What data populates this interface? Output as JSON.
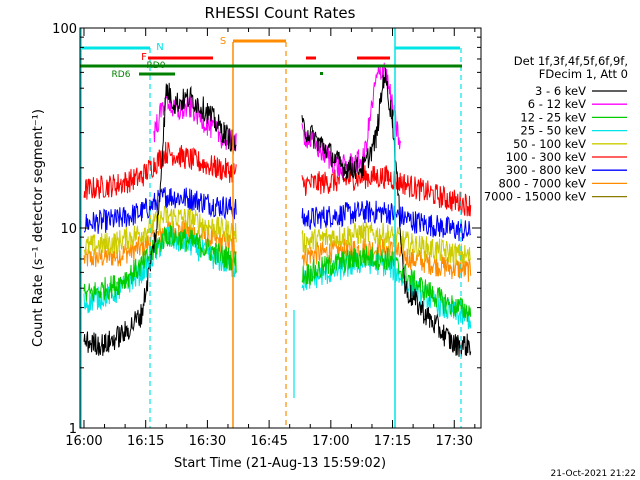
{
  "chart_data": {
    "type": "line",
    "title": "RHESSI Count Rates",
    "xlabel": "Start Time (21-Aug-13 15:59:02)",
    "ylabel": "Count Rate (s⁻¹ detector segment⁻¹)",
    "y_scale": "log",
    "ylim": [
      1,
      100
    ],
    "xlim": [
      "15:59:02",
      "17:36:30"
    ],
    "x_ticks": [
      "16:00",
      "16:15",
      "16:30",
      "16:45",
      "17:00",
      "17:15",
      "17:30"
    ],
    "y_ticks": [
      "1",
      "10",
      "100"
    ],
    "grid": false,
    "legend_position": "right",
    "legend_header": [
      "Det 1f,3f,4f,5f,6f,9f,",
      "FDecim 1, Att 0"
    ],
    "data_gap": [
      "16:50",
      "16:53"
    ],
    "series": [
      {
        "name": "3 - 6 keV",
        "color": "#000000",
        "points": [
          [
            "16:00",
            2.7
          ],
          [
            "16:05",
            2.6
          ],
          [
            "16:10",
            3.0
          ],
          [
            "16:14",
            3.7
          ],
          [
            "16:18",
            11
          ],
          [
            "16:20",
            50
          ],
          [
            "16:22",
            42
          ],
          [
            "16:26",
            45
          ],
          [
            "16:30",
            38
          ],
          [
            "16:34",
            30
          ],
          [
            "16:37",
            26
          ],
          [
            "16:53",
            32
          ],
          [
            "16:58",
            26
          ],
          [
            "17:03",
            20
          ],
          [
            "17:08",
            20
          ],
          [
            "17:11",
            28
          ],
          [
            "17:13",
            60
          ],
          [
            "17:15",
            35
          ],
          [
            "17:18",
            5
          ],
          [
            "17:24",
            3.5
          ],
          [
            "17:30",
            2.6
          ],
          [
            "17:34",
            2.6
          ]
        ]
      },
      {
        "name": "6 - 12 keV",
        "color": "#ff00ff",
        "points": [
          [
            "16:17",
            30
          ],
          [
            "16:20",
            45
          ],
          [
            "16:22",
            38
          ],
          [
            "16:26",
            40
          ],
          [
            "16:30",
            33
          ],
          [
            "16:34",
            28
          ],
          [
            "16:37",
            26
          ],
          [
            "16:53",
            30
          ],
          [
            "16:58",
            24
          ],
          [
            "17:02",
            20
          ],
          [
            "17:08",
            22
          ],
          [
            "17:11",
            55
          ],
          [
            "17:13",
            65
          ],
          [
            "17:15",
            40
          ],
          [
            "17:17",
            25
          ]
        ]
      },
      {
        "name": "12 - 25 keV",
        "color": "#00cc00",
        "points": [
          [
            "16:00",
            4.6
          ],
          [
            "16:08",
            5.2
          ],
          [
            "16:14",
            6.5
          ],
          [
            "16:20",
            9.2
          ],
          [
            "16:26",
            8.6
          ],
          [
            "16:32",
            7.5
          ],
          [
            "16:37",
            6.8
          ],
          [
            "16:53",
            5.8
          ],
          [
            "17:00",
            6.5
          ],
          [
            "17:08",
            7.2
          ],
          [
            "17:14",
            7.0
          ],
          [
            "17:20",
            5.4
          ],
          [
            "17:28",
            4.2
          ],
          [
            "17:34",
            3.8
          ]
        ]
      },
      {
        "name": "25 - 50 keV",
        "color": "#00e5e5",
        "points": [
          [
            "16:00",
            4.2
          ],
          [
            "16:08",
            4.8
          ],
          [
            "16:14",
            6.0
          ],
          [
            "16:20",
            9.0
          ],
          [
            "16:26",
            8.2
          ],
          [
            "16:32",
            7.0
          ],
          [
            "16:37",
            6.3
          ],
          [
            "16:53",
            5.4
          ],
          [
            "17:00",
            6.0
          ],
          [
            "17:08",
            6.8
          ],
          [
            "17:14",
            6.5
          ],
          [
            "17:20",
            5.0
          ],
          [
            "17:28",
            3.9
          ],
          [
            "17:34",
            3.5
          ]
        ]
      },
      {
        "name": "50 - 100 keV",
        "color": "#cccc00",
        "points": [
          [
            "16:00",
            8.0
          ],
          [
            "16:08",
            8.5
          ],
          [
            "16:14",
            9.5
          ],
          [
            "16:20",
            11.5
          ],
          [
            "16:26",
            11
          ],
          [
            "16:32",
            10
          ],
          [
            "16:37",
            9.5
          ],
          [
            "16:53",
            8.5
          ],
          [
            "17:00",
            9.0
          ],
          [
            "17:08",
            9.4
          ],
          [
            "17:14",
            9.2
          ],
          [
            "17:20",
            8.2
          ],
          [
            "17:28",
            7.6
          ],
          [
            "17:34",
            7.2
          ]
        ]
      },
      {
        "name": "100 - 300 keV",
        "color": "#ff0000",
        "points": [
          [
            "16:00",
            15.5
          ],
          [
            "16:08",
            16.5
          ],
          [
            "16:14",
            18
          ],
          [
            "16:20",
            24
          ],
          [
            "16:26",
            22
          ],
          [
            "16:32",
            20
          ],
          [
            "16:37",
            19
          ],
          [
            "16:53",
            16.5
          ],
          [
            "17:00",
            17
          ],
          [
            "17:08",
            18
          ],
          [
            "17:14",
            18
          ],
          [
            "17:20",
            16
          ],
          [
            "17:28",
            14
          ],
          [
            "17:34",
            13
          ]
        ]
      },
      {
        "name": "300 - 800 keV",
        "color": "#0000ff",
        "points": [
          [
            "16:00",
            10.5
          ],
          [
            "16:08",
            11
          ],
          [
            "16:14",
            12
          ],
          [
            "16:20",
            14.5
          ],
          [
            "16:26",
            14
          ],
          [
            "16:32",
            13
          ],
          [
            "16:37",
            12.5
          ],
          [
            "16:53",
            11
          ],
          [
            "17:00",
            11.5
          ],
          [
            "17:08",
            12
          ],
          [
            "17:14",
            12
          ],
          [
            "17:20",
            10.8
          ],
          [
            "17:28",
            10
          ],
          [
            "17:34",
            9.5
          ]
        ]
      },
      {
        "name": "800 - 7000 keV",
        "color": "#ff8c00",
        "points": [
          [
            "16:00",
            7.0
          ],
          [
            "16:08",
            7.3
          ],
          [
            "16:14",
            8.0
          ],
          [
            "16:20",
            9.8
          ],
          [
            "16:26",
            9.5
          ],
          [
            "16:32",
            8.7
          ],
          [
            "16:37",
            8.2
          ],
          [
            "16:53",
            7.3
          ],
          [
            "17:00",
            7.6
          ],
          [
            "17:08",
            7.9
          ],
          [
            "17:14",
            7.8
          ],
          [
            "17:20",
            7.0
          ],
          [
            "17:28",
            6.4
          ],
          [
            "17:34",
            6.1
          ]
        ]
      },
      {
        "name": "7000 - 15000 keV",
        "color": "#8b7d00",
        "points": []
      }
    ],
    "annotations": [
      {
        "label": "N",
        "color": "#00e5e5"
      },
      {
        "label": "F",
        "color": "#ff0000"
      },
      {
        "label": "S",
        "color": "#ff8c00"
      },
      {
        "label": "RD0",
        "color": "#008000"
      },
      {
        "label": "RD6",
        "color": "#008000"
      }
    ],
    "timestamp": "21-Oct-2021 21:22"
  }
}
